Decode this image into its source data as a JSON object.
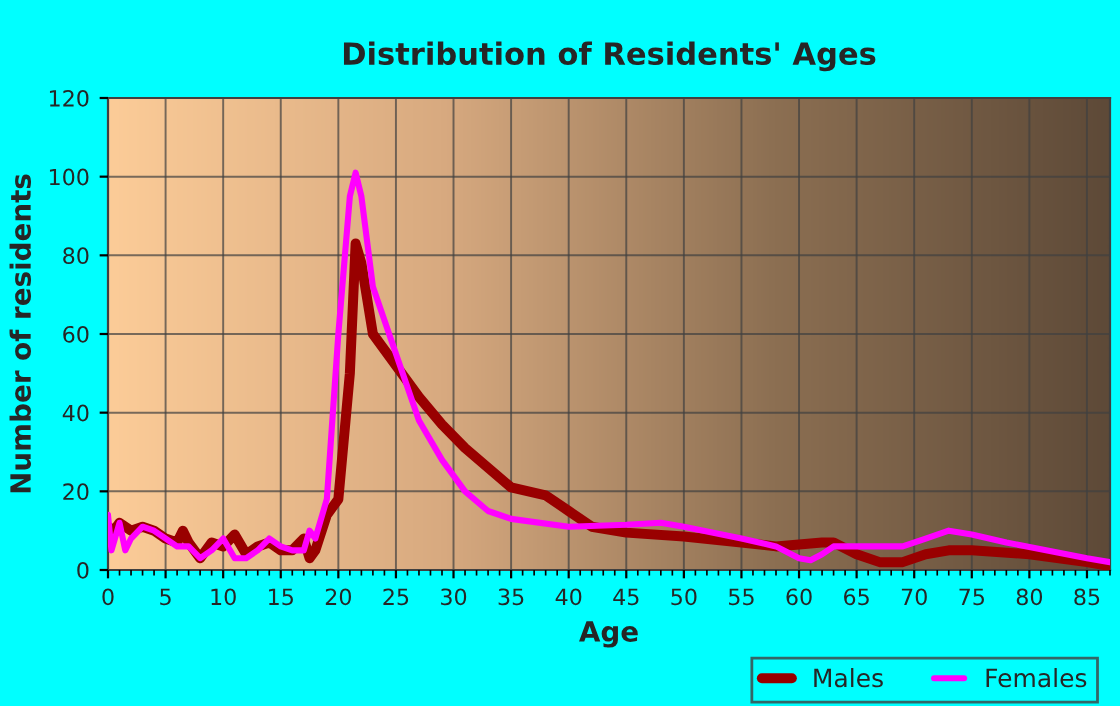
{
  "chart_data": {
    "type": "line",
    "title": "Distribution of Residents' Ages",
    "xlabel": "Age",
    "ylabel": "Number of residents",
    "xlim": [
      0,
      87
    ],
    "xticks": [
      0,
      5,
      10,
      15,
      20,
      25,
      30,
      35,
      40,
      45,
      50,
      55,
      60,
      65,
      70,
      75,
      80,
      85
    ],
    "ylim": [
      0,
      120
    ],
    "yticks": [
      0,
      20,
      40,
      60,
      80,
      100,
      120
    ],
    "grid": true,
    "legend": "bottom right",
    "line_style": "solid",
    "marker": "none",
    "series": [
      {
        "name": "Males",
        "color": "#990000",
        "x": [
          0,
          0.5,
          1,
          2,
          3,
          4,
          5,
          6,
          6.5,
          7,
          8,
          9,
          10,
          11,
          12,
          13,
          14,
          15,
          16,
          17,
          17.5,
          18,
          19,
          20,
          21,
          21.5,
          22,
          23,
          25,
          27,
          29,
          31,
          33,
          35,
          38,
          40,
          42,
          45,
          50,
          55,
          58,
          60,
          62,
          63,
          65,
          67,
          69,
          71,
          73,
          75,
          80,
          85,
          87
        ],
        "values": [
          11,
          10,
          12,
          10,
          11,
          10,
          8,
          7,
          10,
          7,
          3,
          7,
          6,
          9,
          4,
          6,
          7,
          5,
          5,
          8,
          3,
          5,
          14,
          18,
          50,
          83,
          78,
          60,
          52,
          44,
          37,
          31,
          26,
          21,
          19,
          15,
          11,
          9.5,
          8.5,
          7,
          6,
          6.5,
          7,
          7,
          4,
          2,
          2,
          4,
          5,
          5,
          4,
          2,
          1
        ]
      },
      {
        "name": "Females",
        "color": "#ff00ff",
        "x": [
          0,
          0.3,
          1,
          1.5,
          2,
          3,
          4,
          5,
          6,
          7,
          8,
          9,
          10,
          11,
          12,
          13,
          14,
          15,
          16,
          17,
          17.5,
          18,
          19,
          20,
          21,
          21.5,
          22,
          23,
          25,
          27,
          29,
          31,
          33,
          35,
          40,
          45,
          48,
          50,
          55,
          58,
          60,
          61,
          62,
          63,
          65,
          67,
          69,
          71,
          73,
          75,
          78,
          85,
          87
        ],
        "values": [
          14,
          5,
          12,
          5,
          8,
          11,
          10,
          8,
          6,
          6,
          3,
          5,
          8,
          3,
          3,
          5,
          8,
          6,
          5,
          5,
          10,
          8,
          18,
          60,
          95,
          101,
          95,
          72,
          55,
          38,
          28,
          20,
          15,
          13,
          11,
          11.5,
          12,
          11,
          8,
          6,
          3,
          2.5,
          4,
          6,
          6,
          6,
          6,
          8,
          10,
          9,
          7,
          3,
          2
        ]
      }
    ]
  }
}
